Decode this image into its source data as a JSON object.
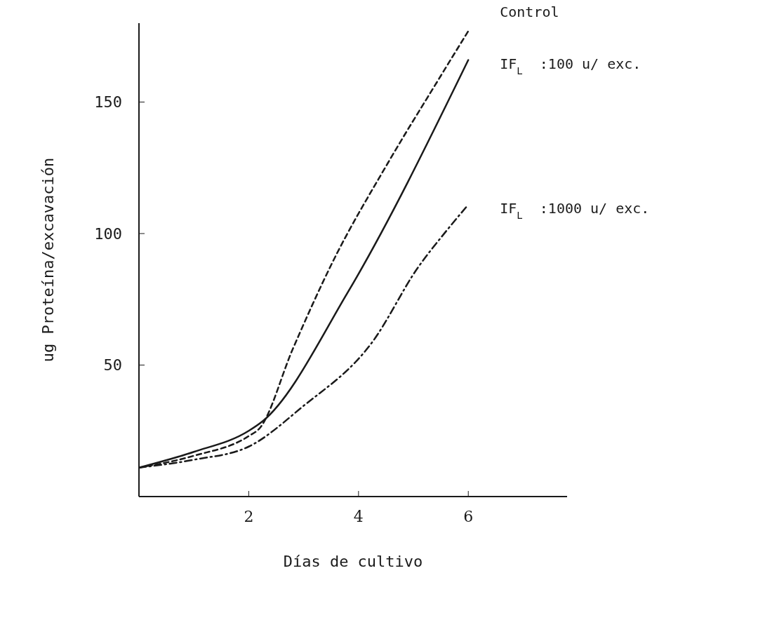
{
  "chart_data": {
    "type": "line",
    "xlabel": "Días de cultivo",
    "ylabel": "ug Proteína/excavación",
    "xlim": [
      0,
      7.8
    ],
    "ylim": [
      0,
      180
    ],
    "xticks": [
      2,
      4,
      6
    ],
    "yticks": [
      50,
      100,
      150
    ],
    "marker": "none",
    "series": [
      {
        "name": "Control",
        "color": "#1a1a1a",
        "line_style": "dashed",
        "x": [
          0,
          1,
          2,
          2.2,
          2.8,
          3.5,
          4.54,
          5.5,
          6
        ],
        "values": [
          11,
          15.5,
          23,
          26,
          56,
          88,
          127,
          160,
          177
        ]
      },
      {
        "name": "IF$_{L}$  :100 u/ exc.",
        "color": "#1a1a1a",
        "line_style": "solid",
        "x": [
          0,
          1,
          2,
          2.25,
          3.8,
          6
        ],
        "values": [
          11,
          17,
          25,
          28.6,
          77.5,
          166
        ]
      },
      {
        "name": "IF$_{L}$  :1000 u/ exc.",
        "color": "#1a1a1a",
        "line_style": "dashdot",
        "x": [
          0,
          1,
          2,
          2.97,
          4.26,
          5.08,
          5.6,
          6
        ],
        "values": [
          11,
          14,
          19,
          34,
          59,
          87,
          101,
          111
        ]
      }
    ]
  }
}
